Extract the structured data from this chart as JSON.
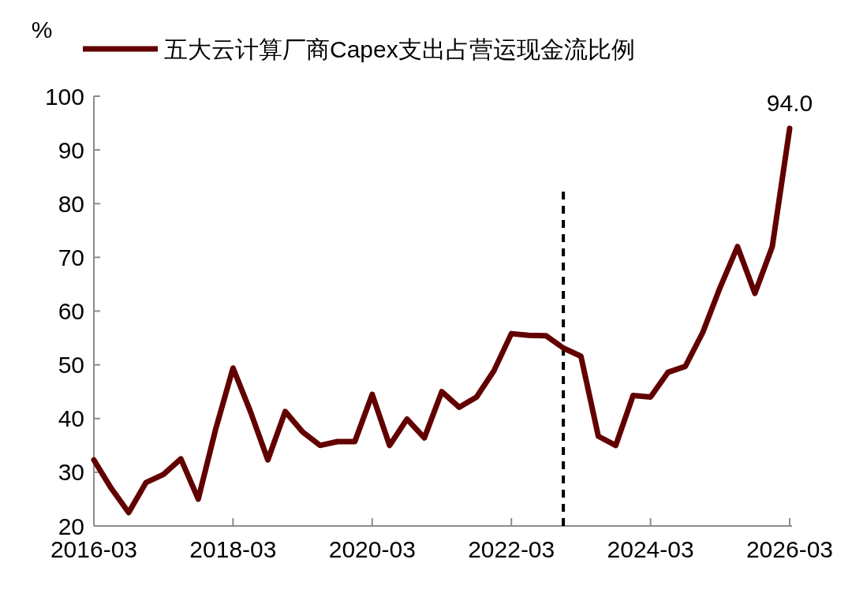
{
  "chart_data": {
    "type": "line",
    "ylabel": "%",
    "legend": "top",
    "grid": false,
    "line_style": "solid",
    "marker": "none",
    "x": [
      "2016-03",
      "2016-06",
      "2016-09",
      "2016-12",
      "2017-03",
      "2017-06",
      "2017-09",
      "2017-12",
      "2018-03",
      "2018-06",
      "2018-09",
      "2018-12",
      "2019-03",
      "2019-06",
      "2019-09",
      "2019-12",
      "2020-03",
      "2020-06",
      "2020-09",
      "2020-12",
      "2021-03",
      "2021-06",
      "2021-09",
      "2021-12",
      "2022-03",
      "2022-06",
      "2022-09",
      "2022-12",
      "2023-03",
      "2023-06",
      "2023-09",
      "2023-12",
      "2024-03",
      "2024-06",
      "2024-09",
      "2024-12",
      "2025-03",
      "2025-06",
      "2025-09",
      "2025-12",
      "2026-03"
    ],
    "series": [
      {
        "name": "五大云计算厂商Capex支出占营运现金流比例",
        "color": "#620000",
        "values": [
          32.3,
          27,
          22.5,
          28.1,
          29.6,
          32.5,
          25,
          38,
          49.4,
          41.3,
          32.3,
          41.3,
          37.5,
          35,
          35.7,
          35.7,
          44.5,
          35,
          39.9,
          36.4,
          45,
          42.1,
          44,
          48.9,
          55.8,
          55.5,
          55.4,
          53.1,
          51.6,
          36.7,
          35,
          44.3,
          44,
          48.6,
          49.7,
          56,
          64.4,
          72,
          63.3,
          72,
          94.0
        ],
        "value_labels": [
          null,
          null,
          null,
          null,
          null,
          null,
          null,
          null,
          null,
          null,
          null,
          null,
          null,
          null,
          null,
          null,
          null,
          null,
          null,
          null,
          null,
          null,
          null,
          null,
          null,
          null,
          null,
          null,
          null,
          null,
          null,
          null,
          null,
          null,
          null,
          null,
          null,
          null,
          null,
          null,
          "94.0"
        ]
      }
    ],
    "xlim": [
      "2016-03",
      "2026-03"
    ],
    "xticks": [
      "2016-03",
      "2018-03",
      "2020-03",
      "2022-03",
      "2024-03",
      "2026-03"
    ],
    "ylim": [
      20,
      100
    ],
    "yticks": [
      20,
      30,
      40,
      50,
      60,
      70,
      80,
      90,
      100
    ],
    "ref_lines": [
      {
        "axis": "x",
        "value": "2022-11-30",
        "color": "#000000",
        "line_style": "dashed"
      }
    ]
  }
}
